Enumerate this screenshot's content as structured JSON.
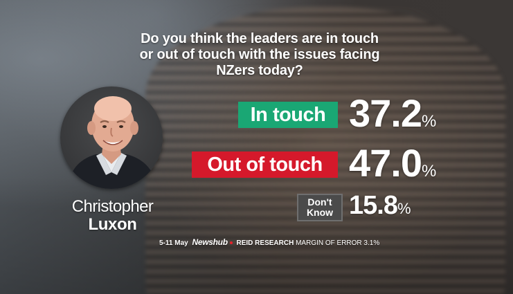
{
  "question": {
    "line1": "Do you think the leaders are in touch",
    "line2": "or out of touch with the issues facing",
    "line3": "NZers today?"
  },
  "person": {
    "first_name": "Christopher",
    "last_name": "Luxon"
  },
  "results": [
    {
      "label": "In touch",
      "value": "37.2",
      "unit": "%",
      "color": "#1aa774"
    },
    {
      "label": "Out of touch",
      "value": "47.0",
      "unit": "%",
      "color": "#d5192b"
    },
    {
      "label_line1": "Don't",
      "label_line2": "Know",
      "value": "15.8",
      "unit": "%",
      "color": "#4b4b4b"
    }
  ],
  "footer": {
    "dates": "5-11 May",
    "brand": "Newshub",
    "research": "REID RESEARCH",
    "margin": "MARGIN OF ERROR 3.1%",
    "brand_dot_color": "#e8202a"
  }
}
